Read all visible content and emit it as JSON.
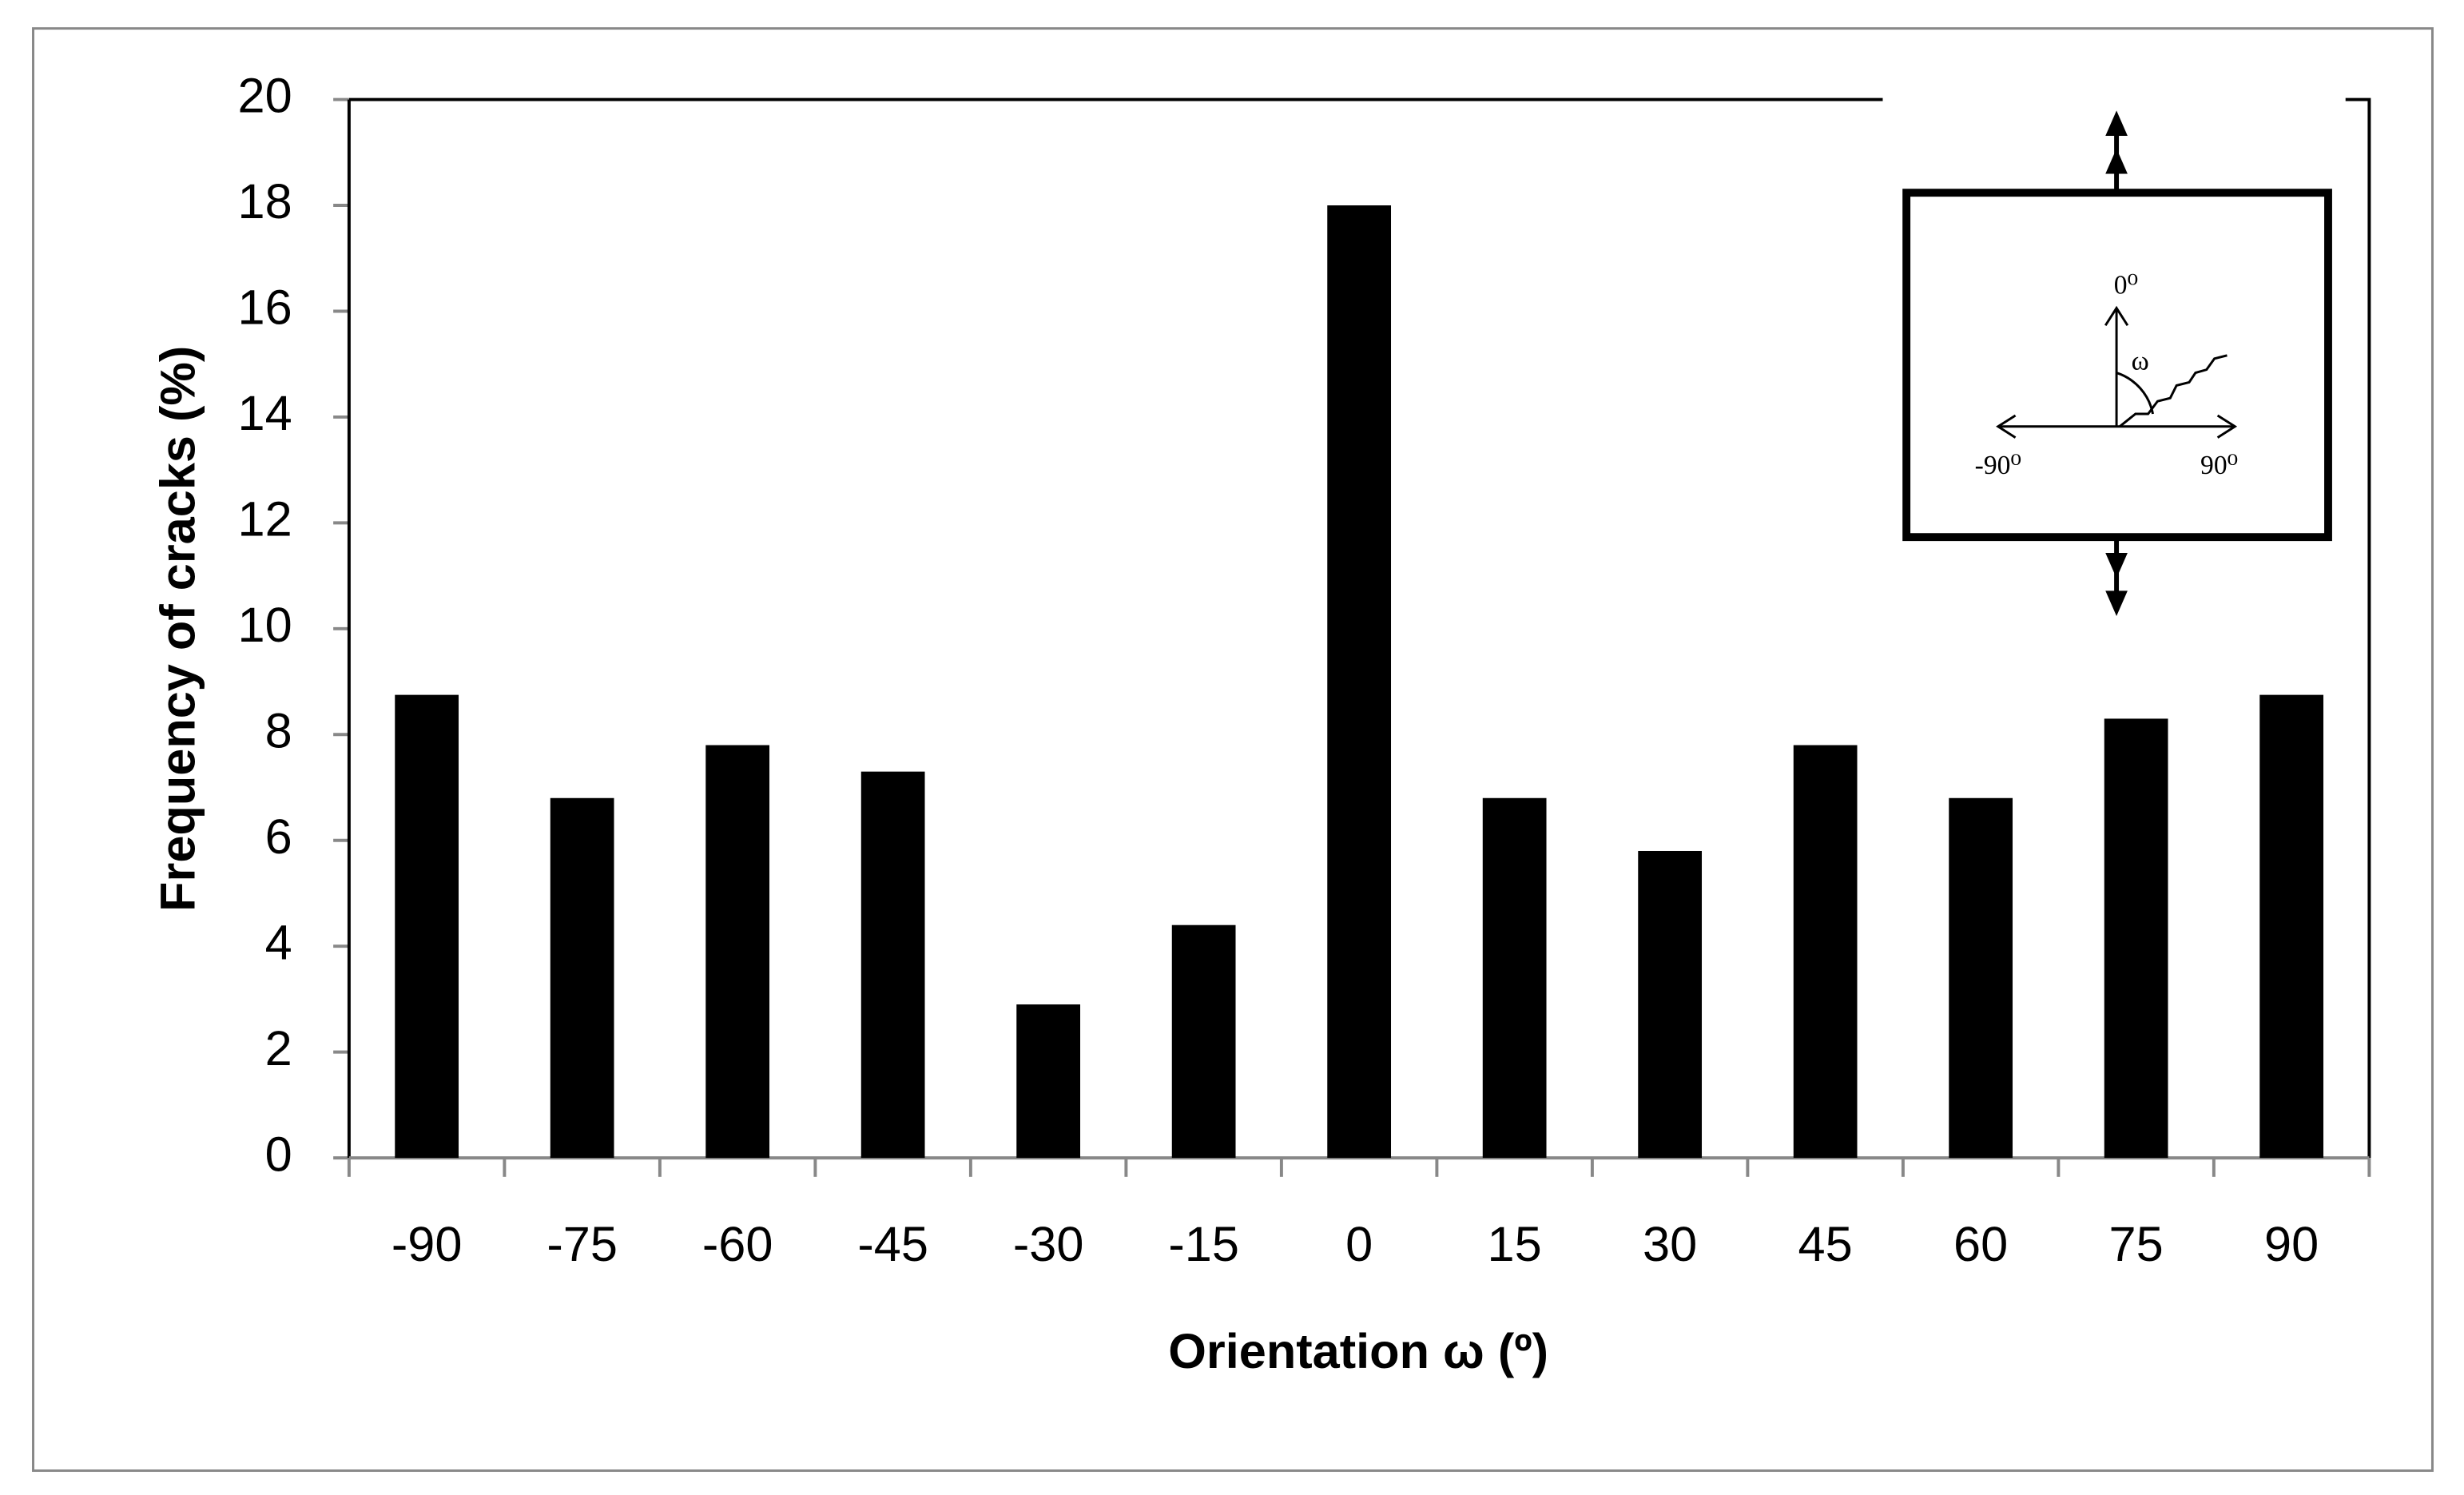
{
  "chart_data": {
    "type": "bar",
    "x_label": "Orientation ω (º)",
    "y_label": "Frequency of cracks (%)",
    "categories": [
      "-90",
      "-75",
      "-60",
      "-45",
      "-30",
      "-15",
      "0",
      "15",
      "30",
      "45",
      "60",
      "75",
      "90"
    ],
    "values": [
      8.75,
      6.8,
      7.8,
      7.3,
      2.9,
      4.4,
      18,
      6.8,
      5.8,
      7.8,
      6.8,
      8.3,
      8.75
    ],
    "color": "#000000",
    "ylim": [
      0,
      20
    ],
    "yticks": [
      0,
      2,
      4,
      6,
      8,
      10,
      12,
      14,
      16,
      18,
      20
    ],
    "grid": false,
    "inset_labels": [
      "0⁰",
      "ω",
      "-90⁰",
      "90⁰"
    ]
  }
}
